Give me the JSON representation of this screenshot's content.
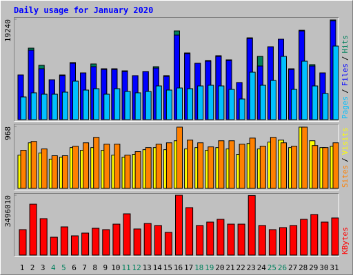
{
  "title": "Daily usage for January 2020",
  "legend_separator": "/",
  "weekend_color": "#00805C",
  "weekends": [
    "4",
    "5",
    "11",
    "12",
    "18",
    "19",
    "25",
    "26"
  ],
  "categories": [
    "1",
    "2",
    "3",
    "4",
    "5",
    "6",
    "7",
    "8",
    "9",
    "10",
    "11",
    "12",
    "13",
    "14",
    "15",
    "16",
    "17",
    "18",
    "19",
    "20",
    "21",
    "22",
    "23",
    "24",
    "25",
    "26",
    "27",
    "28",
    "29",
    "30",
    "31"
  ],
  "chart_data": [
    {
      "type": "bar",
      "ylim": [
        0,
        19240
      ],
      "yticks": [
        19240
      ],
      "series": [
        {
          "name": "Hits",
          "color": "#00805C",
          "values": [
            8566,
            13705,
            10411,
            7643,
            8566,
            10938,
            8961,
            10674,
            9752,
            9752,
            9356,
            8434,
            9225,
            10147,
            8434,
            17000,
            12783,
            10806,
            11333,
            12256,
            11465,
            7116,
            15682,
            12124,
            13969,
            15418,
            9752,
            17131,
            10542,
            8961,
            19108
          ]
        },
        {
          "name": "Files",
          "color": "#0000FF",
          "values": [
            8566,
            13310,
            9752,
            7643,
            8434,
            10806,
            8961,
            10147,
            9620,
            9620,
            9225,
            8434,
            9225,
            9884,
            8302,
            16209,
            12651,
            10806,
            11201,
            12124,
            11333,
            7116,
            15550,
            10279,
            13969,
            15418,
            9620,
            17000,
            10279,
            8961,
            18950
          ]
        },
        {
          "name": "Pages",
          "color": "#00C0FF",
          "values": [
            4349,
            5139,
            4876,
            4876,
            5271,
            7380,
            5667,
            5930,
            4876,
            5930,
            5403,
            5139,
            5403,
            6457,
            5667,
            6062,
            5930,
            6457,
            6589,
            6457,
            5798,
            3953,
            9093,
            6589,
            7511,
            12124,
            5798,
            11201,
            6457,
            5008,
            14100
          ]
        }
      ]
    },
    {
      "type": "bar",
      "ylim": [
        0,
        968
      ],
      "yticks": [
        968
      ],
      "series": [
        {
          "name": "Visits",
          "color": "#FFFF00",
          "values": [
            521,
            713,
            553,
            458,
            489,
            638,
            596,
            638,
            596,
            521,
            489,
            532,
            606,
            638,
            606,
            745,
            617,
            638,
            596,
            638,
            617,
            532,
            702,
            617,
            724,
            755,
            638,
            958,
            745,
            638,
            660
          ]
        },
        {
          "name": "Sites",
          "color": "#FF8000",
          "values": [
            596,
            734,
            617,
            511,
            511,
            660,
            713,
            798,
            692,
            692,
            521,
            575,
            638,
            692,
            713,
            958,
            755,
            713,
            649,
            745,
            745,
            692,
            787,
            660,
            798,
            713,
            660,
            958,
            670,
            638,
            713
          ]
        }
      ]
    },
    {
      "type": "bar",
      "ylim": [
        0,
        3496010
      ],
      "yticks": [
        3496010
      ],
      "series": [
        {
          "name": "KBytes",
          "color": "#FF0000",
          "values": [
            1486808,
            2973616,
            2129752,
            1044784,
            1647544,
            1125152,
            1285888,
            1567176,
            1486808,
            1808280,
            2411040,
            1526992,
            1848464,
            1727912,
            1326072,
            3496010,
            2772696,
            1727912,
            1928832,
            2089568,
            1808280,
            1808280,
            3480000,
            1727912,
            1486808,
            1607360,
            1727912,
            2089568,
            2370856,
            1928832,
            2169936
          ]
        }
      ]
    }
  ]
}
